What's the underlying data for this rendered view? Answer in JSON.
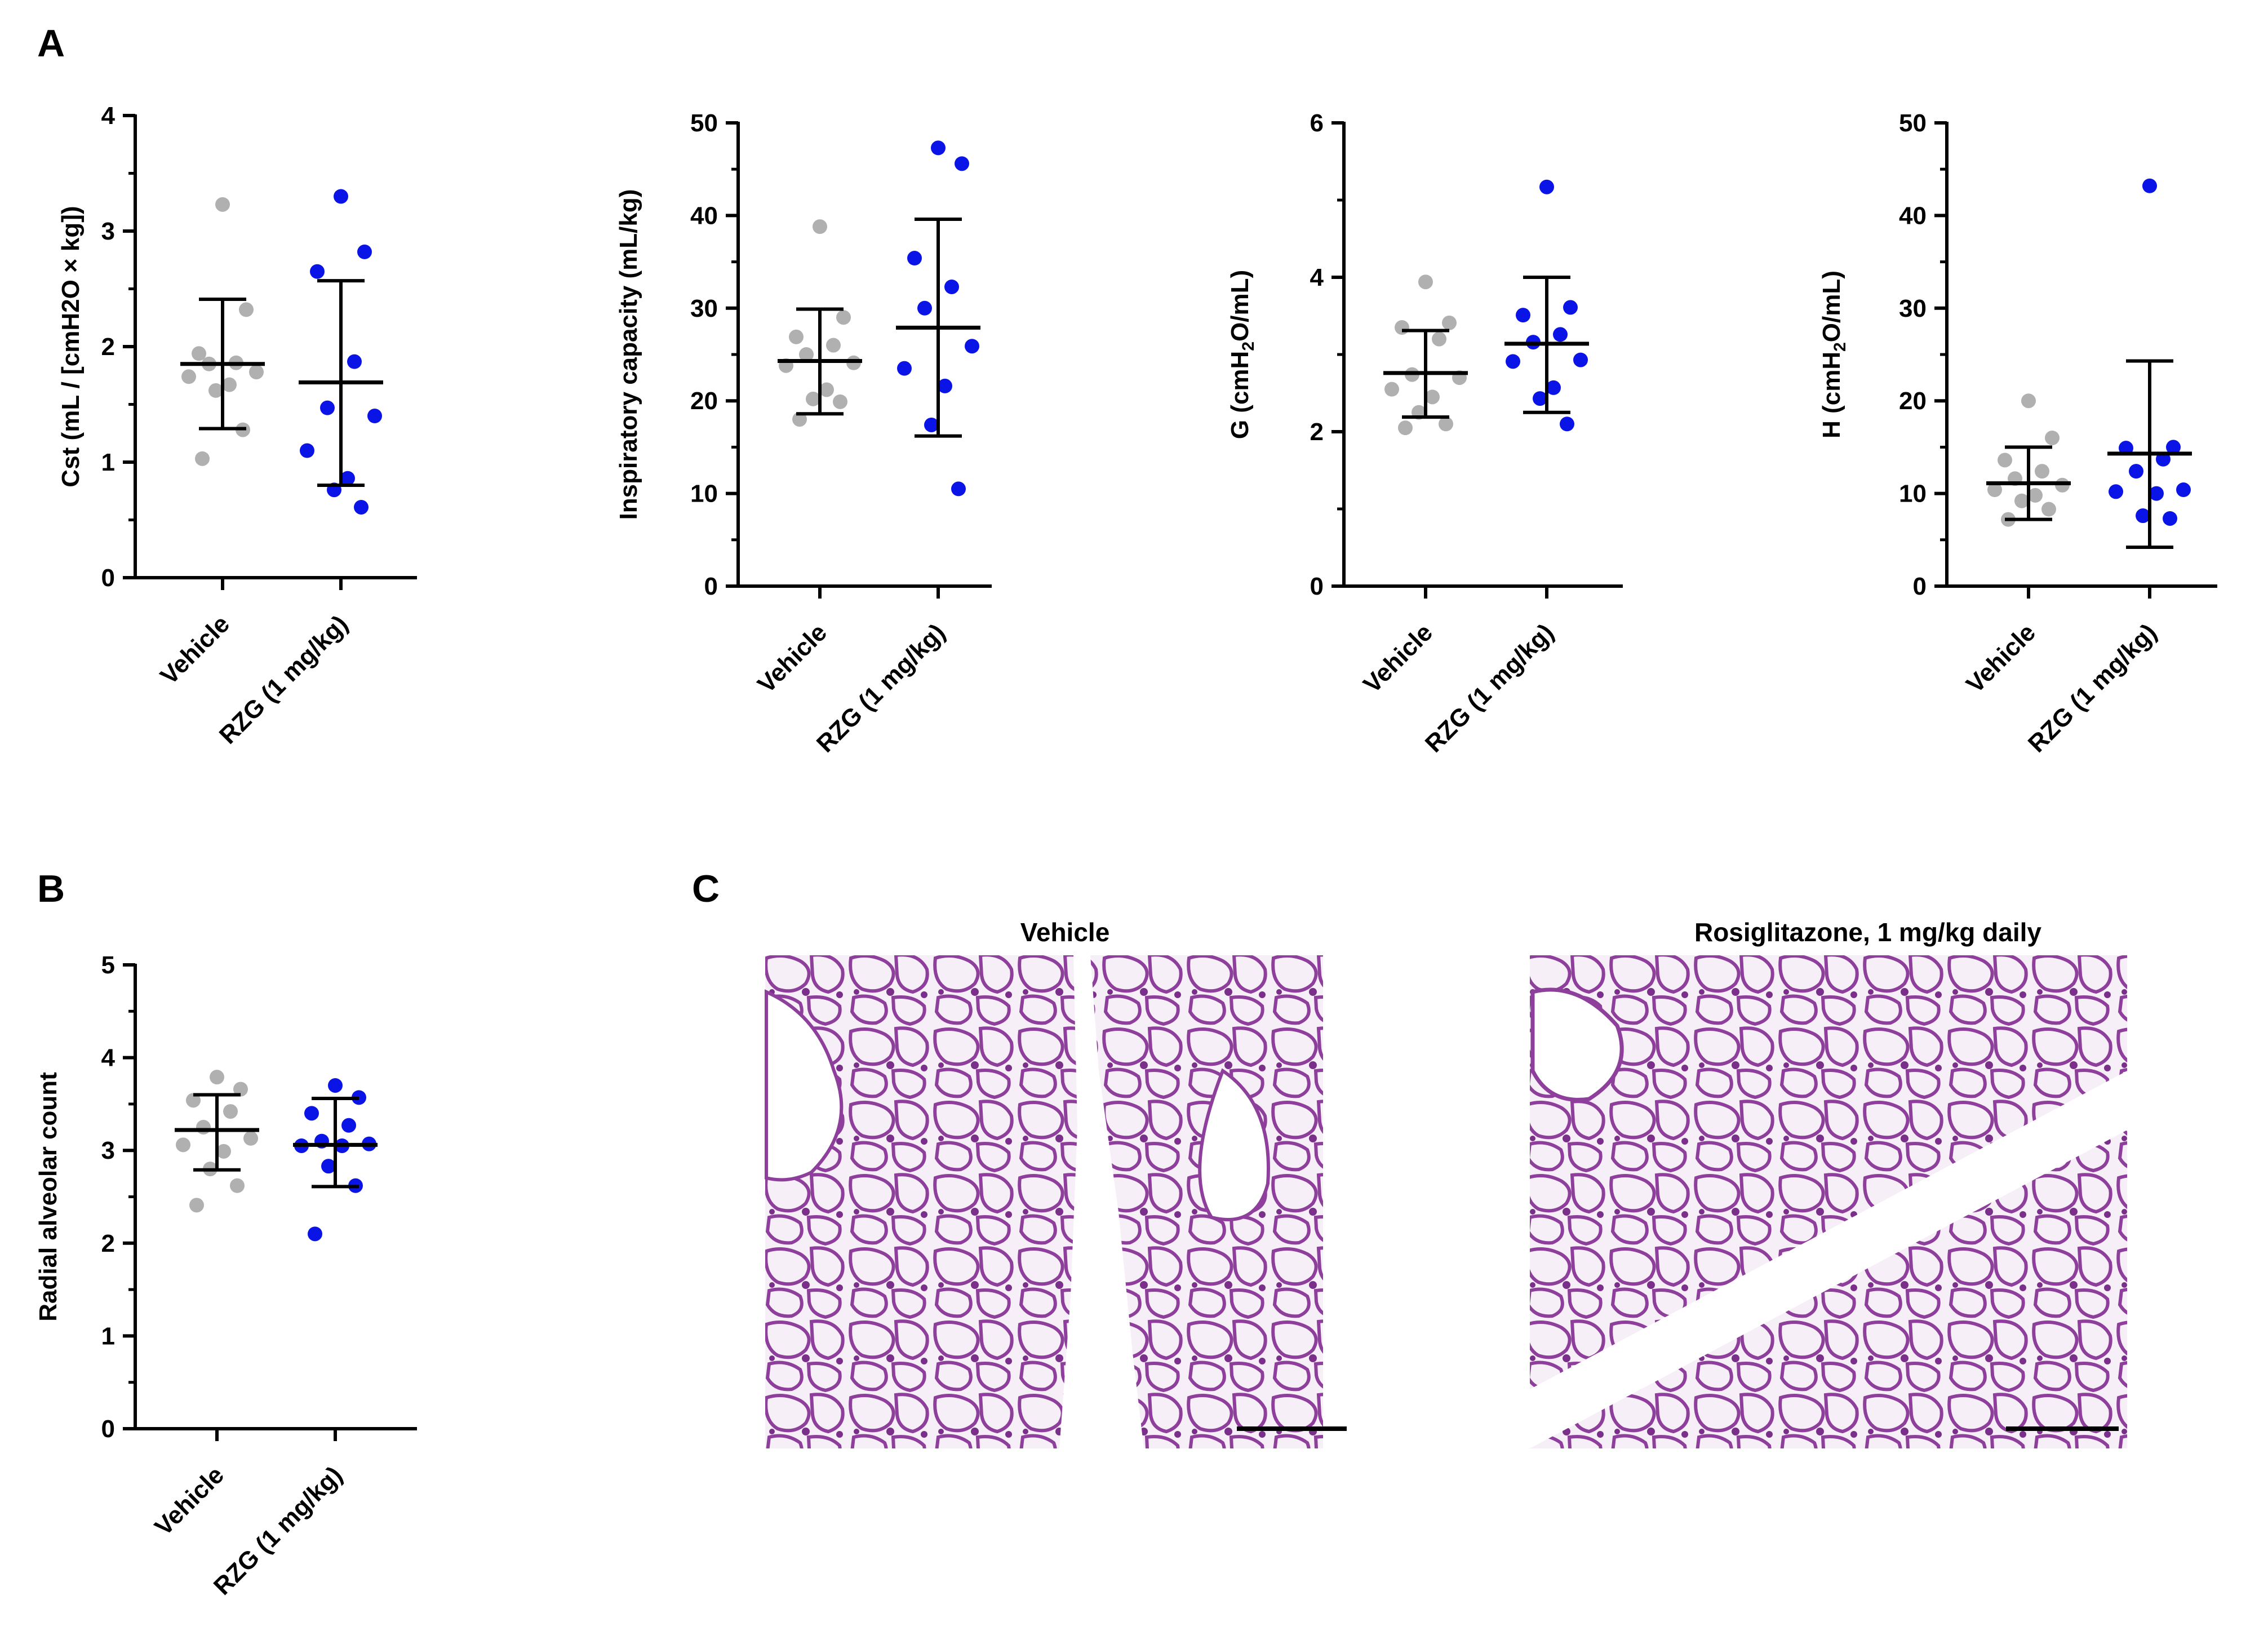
{
  "panel_letters": {
    "a": "A",
    "b": "B",
    "c": "C"
  },
  "colors": {
    "vehicle": "#b0b0b0",
    "rzg": "#0a14e6",
    "axis": "#000000",
    "tissue_bg": "#f6eef6",
    "tissue_line": "#8e3f9c"
  },
  "chart_data": [
    {
      "id": "cst",
      "type": "scatter",
      "ylabel": "Cst (mL / [cmH2O × kg])",
      "ylim": [
        0,
        4
      ],
      "ticks": [
        "0",
        "1",
        "2",
        "3",
        "4"
      ],
      "categories": [
        "Vehicle",
        "RZG (1 mg/kg)"
      ],
      "series": [
        {
          "name": "Vehicle",
          "mean": 1.85,
          "sd_low": 1.29,
          "sd_high": 2.41,
          "values": [
            3.23,
            2.32,
            1.94,
            1.86,
            1.85,
            1.78,
            1.74,
            1.67,
            1.62,
            1.28,
            1.03
          ]
        },
        {
          "name": "RZG (1 mg/kg)",
          "mean": 1.69,
          "sd_low": 0.8,
          "sd_high": 2.57,
          "values": [
            3.3,
            2.82,
            2.65,
            1.87,
            1.47,
            1.4,
            1.1,
            0.86,
            0.76,
            0.61
          ]
        }
      ]
    },
    {
      "id": "ic",
      "type": "scatter",
      "ylabel": "Inspiratory capacity (mL/kg)",
      "ylim": [
        0,
        50
      ],
      "ticks": [
        "0",
        "10",
        "20",
        "30",
        "40",
        "50"
      ],
      "categories": [
        "Vehicle",
        "RZG (1 mg/kg)"
      ],
      "series": [
        {
          "name": "Vehicle",
          "mean": 24.3,
          "sd_low": 18.6,
          "sd_high": 29.9,
          "values": [
            38.8,
            29.0,
            26.9,
            26.0,
            25.0,
            24.1,
            23.8,
            21.2,
            20.2,
            19.9,
            18.0
          ]
        },
        {
          "name": "RZG (1 mg/kg)",
          "mean": 27.9,
          "sd_low": 16.2,
          "sd_high": 39.6,
          "values": [
            47.3,
            45.6,
            35.4,
            32.3,
            30.0,
            25.9,
            23.5,
            21.6,
            17.4,
            10.5
          ]
        }
      ]
    },
    {
      "id": "g",
      "type": "scatter",
      "ylabel": "G (cmH2O/mL)",
      "ylabel_main": "G (cmH",
      "ylabel_sub": "2",
      "ylabel_tail": "O/mL)",
      "ylim": [
        0,
        6
      ],
      "ticks": [
        "0",
        "2",
        "4",
        "6"
      ],
      "categories": [
        "Vehicle",
        "RZG (1 mg/kg)"
      ],
      "series": [
        {
          "name": "Vehicle",
          "mean": 2.76,
          "sd_low": 2.19,
          "sd_high": 3.31,
          "values": [
            3.94,
            3.41,
            3.35,
            3.2,
            2.74,
            2.7,
            2.55,
            2.45,
            2.25,
            2.1,
            2.05
          ]
        },
        {
          "name": "RZG (1 mg/kg)",
          "mean": 3.14,
          "sd_low": 2.25,
          "sd_high": 4.0,
          "values": [
            5.17,
            3.61,
            3.51,
            3.26,
            3.16,
            2.93,
            2.91,
            2.57,
            2.43,
            2.1
          ]
        }
      ]
    },
    {
      "id": "h",
      "type": "scatter",
      "ylabel": "H (cmH2O/mL)",
      "ylabel_main": "H (cmH",
      "ylabel_sub": "2",
      "ylabel_tail": "O/mL)",
      "ylim": [
        0,
        50
      ],
      "ticks": [
        "0",
        "10",
        "20",
        "30",
        "40",
        "50"
      ],
      "categories": [
        "Vehicle",
        "RZG (1 mg/kg)"
      ],
      "series": [
        {
          "name": "Vehicle",
          "mean": 11.1,
          "sd_low": 7.2,
          "sd_high": 15.0,
          "values": [
            20.0,
            16.0,
            13.6,
            12.4,
            11.6,
            10.9,
            10.4,
            9.8,
            9.2,
            8.3,
            7.2
          ]
        },
        {
          "name": "RZG (1 mg/kg)",
          "mean": 14.3,
          "sd_low": 4.2,
          "sd_high": 24.3,
          "values": [
            43.2,
            15.0,
            14.9,
            13.7,
            12.4,
            10.4,
            10.2,
            10.0,
            7.6,
            7.3
          ]
        }
      ]
    },
    {
      "id": "rac",
      "type": "scatter",
      "ylabel": "Radial alveolar count",
      "ylim": [
        0,
        5
      ],
      "ticks": [
        "0",
        "1",
        "2",
        "3",
        "4",
        "5"
      ],
      "categories": [
        "Vehicle",
        "RZG (1 mg/kg)"
      ],
      "series": [
        {
          "name": "Vehicle",
          "mean": 3.22,
          "sd_low": 2.79,
          "sd_high": 3.6,
          "values": [
            3.79,
            3.66,
            3.54,
            3.42,
            3.25,
            3.13,
            3.06,
            2.99,
            2.8,
            2.62,
            2.41
          ]
        },
        {
          "name": "RZG (1 mg/kg)",
          "mean": 3.06,
          "sd_low": 2.61,
          "sd_high": 3.56,
          "values": [
            3.7,
            3.57,
            3.4,
            3.27,
            3.1,
            3.07,
            3.05,
            3.05,
            2.83,
            2.62,
            2.1
          ]
        }
      ]
    }
  ],
  "micrographs": {
    "vehicle_title": "Vehicle",
    "rzg_title": "Rosiglitazone, 1 mg/kg daily"
  }
}
